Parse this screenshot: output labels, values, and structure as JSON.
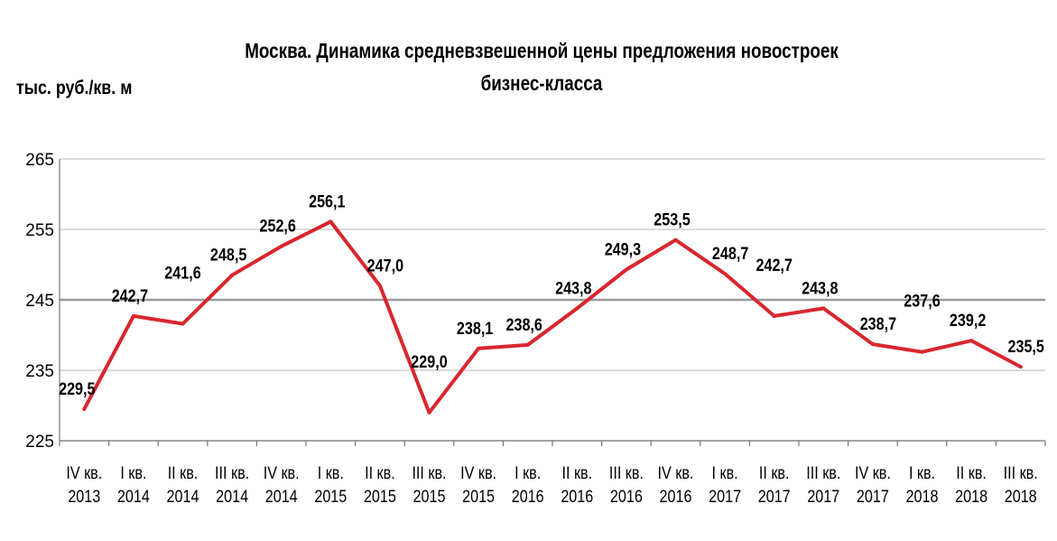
{
  "chart_data": {
    "type": "line",
    "title_lines": [
      "Москва. Динамика средневзвешенной цены предложения новостроек",
      "бизнес-класса"
    ],
    "ylabel": "тыс. руб./кв.  м",
    "xlabel": "",
    "ylim": [
      225,
      265
    ],
    "yticks": [
      225,
      235,
      245,
      255,
      265
    ],
    "ytick_labels": [
      "225",
      "235",
      "245",
      "255",
      "265"
    ],
    "grid": "horizontal",
    "legend": "none",
    "line_color": "#d9262e",
    "categories": [
      [
        "IV кв.",
        "2013"
      ],
      [
        "I кв.",
        "2014"
      ],
      [
        "II кв.",
        "2014"
      ],
      [
        "III кв.",
        "2014"
      ],
      [
        "IV кв.",
        "2014"
      ],
      [
        "I кв.",
        "2015"
      ],
      [
        "II кв.",
        "2015"
      ],
      [
        "III кв.",
        "2015"
      ],
      [
        "IV кв.",
        "2015"
      ],
      [
        "I кв.",
        "2016"
      ],
      [
        "II кв.",
        "2016"
      ],
      [
        "III кв.",
        "2016"
      ],
      [
        "IV кв.",
        "2016"
      ],
      [
        "I кв.",
        "2017"
      ],
      [
        "II кв.",
        "2017"
      ],
      [
        "III кв.",
        "2017"
      ],
      [
        "IV кв.",
        "2017"
      ],
      [
        "I кв.",
        "2018"
      ],
      [
        "II кв.",
        "2018"
      ],
      [
        "III кв.",
        "2018"
      ]
    ],
    "values": [
      229.5,
      242.7,
      241.6,
      248.5,
      252.6,
      256.1,
      247.0,
      229.0,
      238.1,
      238.6,
      243.8,
      249.3,
      253.5,
      248.7,
      242.7,
      243.8,
      238.7,
      237.6,
      239.2,
      235.5
    ],
    "value_labels": [
      "229,5",
      "242,7",
      "241,6",
      "248,5",
      "252,6",
      "256,1",
      "247,0",
      "229,0",
      "238,1",
      "238,6",
      "243,8",
      "249,3",
      "253,5",
      "248,7",
      "242,7",
      "243,8",
      "238,7",
      "237,6",
      "239,2",
      "235,5"
    ]
  }
}
